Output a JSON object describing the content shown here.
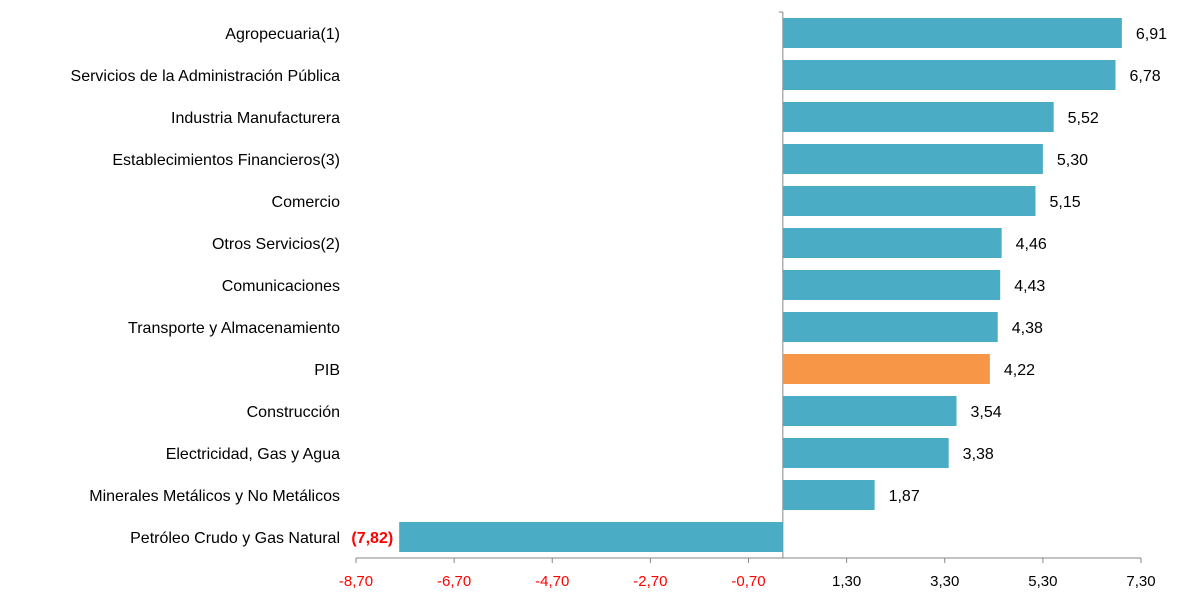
{
  "chart_data": {
    "type": "hbar",
    "categories": [
      "Agropecuaria(1)",
      "Servicios de la Administración Pública",
      "Industria Manufacturera",
      "Establecimientos Financieros(3)",
      "Comercio",
      "Otros Servicios(2)",
      "Comunicaciones",
      "Transporte y Almacenamiento",
      "PIB",
      "Construcción",
      "Electricidad, Gas y Agua",
      "Minerales Metálicos y No Metálicos",
      "Petróleo Crudo y Gas Natural"
    ],
    "values": [
      6.91,
      6.78,
      5.52,
      5.3,
      5.15,
      4.46,
      4.43,
      4.38,
      4.22,
      3.54,
      3.38,
      1.87,
      -7.82
    ],
    "value_labels": [
      "6,91",
      "6,78",
      "5,52",
      "5,30",
      "5,15",
      "4,46",
      "4,43",
      "4,38",
      "4,22",
      "3,54",
      "3,38",
      "1,87",
      "(7,82)"
    ],
    "colors": [
      "#4bacc6",
      "#4bacc6",
      "#4bacc6",
      "#4bacc6",
      "#4bacc6",
      "#4bacc6",
      "#4bacc6",
      "#4bacc6",
      "#f79646",
      "#4bacc6",
      "#4bacc6",
      "#4bacc6",
      "#4bacc6"
    ],
    "negative_color": "#ff0000",
    "xlim": [
      -8.7,
      7.3
    ],
    "xticks": [
      {
        "value": -8.7,
        "label": "-8,70"
      },
      {
        "value": -6.7,
        "label": "-6,70"
      },
      {
        "value": -4.7,
        "label": "-4,70"
      },
      {
        "value": -2.7,
        "label": "-2,70"
      },
      {
        "value": -0.7,
        "label": "-0,70"
      },
      {
        "value": 1.3,
        "label": "1,30"
      },
      {
        "value": 3.3,
        "label": "3,30"
      },
      {
        "value": 5.3,
        "label": "5,30"
      },
      {
        "value": 7.3,
        "label": "7,30"
      }
    ]
  }
}
